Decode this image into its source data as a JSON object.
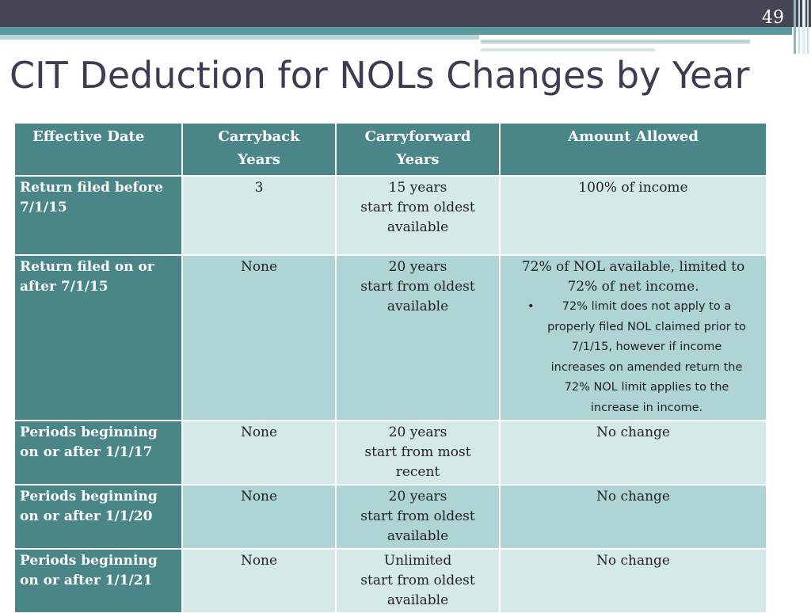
{
  "slide": {
    "page_number": "49",
    "title": "CIT Deduction for NOLs Changes by Year"
  },
  "table": {
    "headers": {
      "effective_date": "Effective Date",
      "carryback_line1": "Carryback",
      "carryback_line2": "Years",
      "carryforward_line1": "Carryforward",
      "carryforward_line2": "Years",
      "amount_allowed": "Amount Allowed"
    },
    "rows": [
      {
        "date_line1": "Return filed before",
        "date_line2": "7/1/15",
        "carryback": "3",
        "cf_line1": "15 years",
        "cf_line2": "start from oldest",
        "cf_line3": "available",
        "amount_line1": "100% of income"
      },
      {
        "date_line1": "Return filed on or",
        "date_line2": "after 7/1/15",
        "carryback": "None",
        "cf_line1": "20 years",
        "cf_line2": "start from oldest",
        "cf_line3": "available",
        "amount_line1": "72% of NOL available, limited to",
        "amount_line2": "72% of net income.",
        "bullet": "•",
        "note_line1": "72% limit does not apply to a",
        "note_line2": "properly filed NOL claimed prior to",
        "note_line3": "7/1/15, however if income",
        "note_line4": "increases on amended return the",
        "note_line5": "72% NOL limit applies to the",
        "note_line6": "increase in income."
      },
      {
        "date_line1": "Periods beginning",
        "date_line2": "on or after 1/1/17",
        "carryback": "None",
        "cf_line1": "20 years",
        "cf_line2": "start from most",
        "cf_line3": "recent",
        "amount_line1": "No change"
      },
      {
        "date_line1": "Periods beginning",
        "date_line2": "on or after 1/1/20",
        "carryback": "None",
        "cf_line1": "20 years",
        "cf_line2": "start from oldest",
        "cf_line3": "available",
        "amount_line1": "No change"
      },
      {
        "date_line1": "Periods beginning",
        "date_line2": "on or after 1/1/21",
        "carryback": "None",
        "cf_line1": "Unlimited",
        "cf_line2": "start from oldest",
        "cf_line3": "available",
        "amount_line1": "No change"
      }
    ]
  },
  "colors": {
    "header_bar": "#454555",
    "teal_header": "#4a8688",
    "row_light": "#d6e9e9",
    "row_dark": "#aed4d5"
  }
}
